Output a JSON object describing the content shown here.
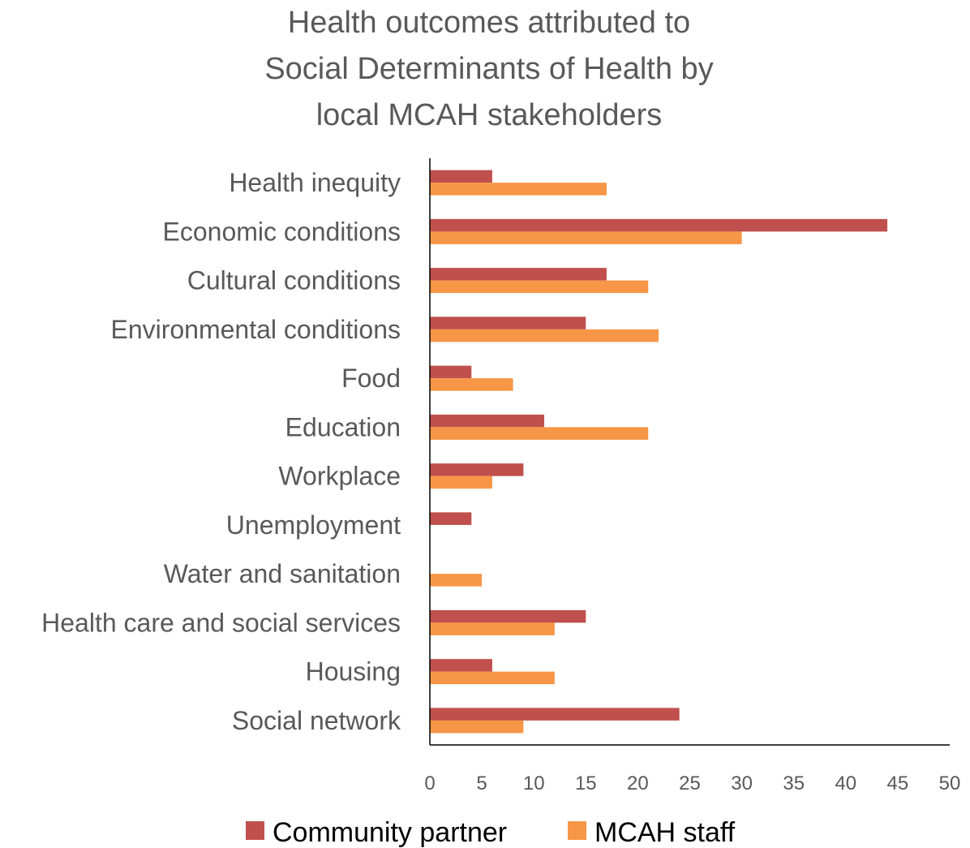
{
  "chart_data": {
    "type": "bar",
    "orientation": "horizontal",
    "title_lines": [
      "Health outcomes attributed to",
      "Social Determinants of Health by",
      "local MCAH stakeholders"
    ],
    "xlabel": "",
    "ylabel": "",
    "xlim": [
      0,
      50
    ],
    "x_ticks": [
      "0",
      "5",
      "10",
      "15",
      "20",
      "25",
      "30",
      "35",
      "40",
      "45",
      "50"
    ],
    "grid": false,
    "legend_position": "bottom",
    "categories": [
      "Health inequity",
      "Economic conditions",
      "Cultural conditions",
      "Environmental conditions",
      "Food",
      "Education",
      "Workplace",
      "Unemployment",
      "Water and sanitation",
      "Health care and social services",
      "Housing",
      "Social network"
    ],
    "series": [
      {
        "name": "Community partner",
        "color": "#c0504d",
        "values": [
          6,
          44,
          17,
          15,
          4,
          11,
          9,
          4,
          0,
          15,
          6,
          24
        ]
      },
      {
        "name": "MCAH staff",
        "color": "#f79646",
        "values": [
          17,
          30,
          21,
          22,
          8,
          21,
          6,
          0,
          5,
          12,
          12,
          9
        ]
      }
    ]
  }
}
